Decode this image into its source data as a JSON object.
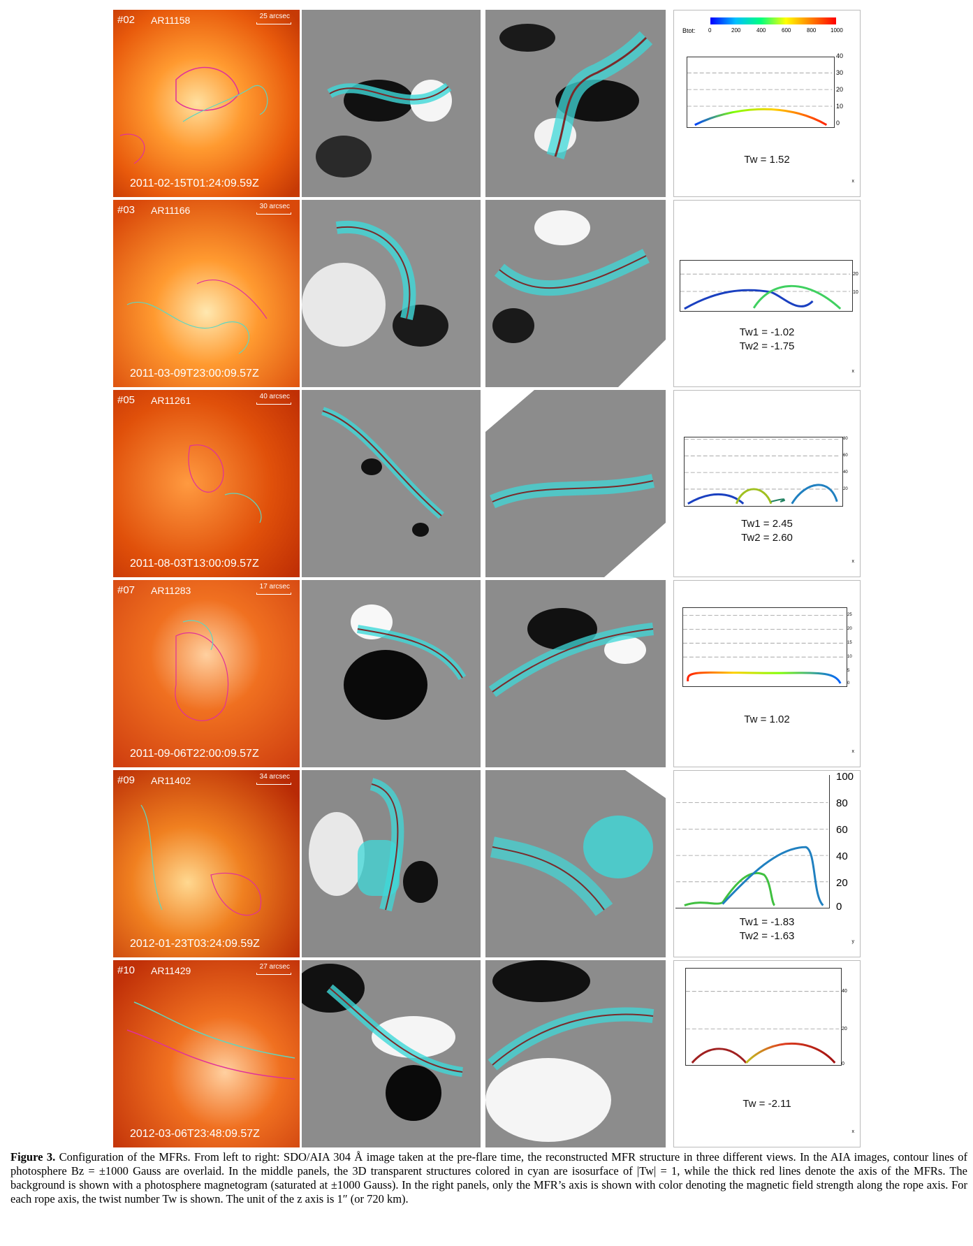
{
  "colorbar": {
    "label": "Btot:",
    "ticks": [
      "0",
      "200",
      "400",
      "600",
      "800",
      "1000"
    ]
  },
  "rows": [
    {
      "num": "#02",
      "ar": "AR11158",
      "scale": "25 arcsec",
      "time": "2011-02-15T01:24:09.59Z",
      "tw_lines": [
        "Tw = 1.52"
      ],
      "yticks": [
        "40",
        "30",
        "20",
        "10",
        "0"
      ],
      "axis_label": "x"
    },
    {
      "num": "#03",
      "ar": "AR11166",
      "scale": "30 arcsec",
      "time": "2011-03-09T23:00:09.57Z",
      "tw_lines": [
        "Tw1 = -1.02",
        "Tw2 = -1.75"
      ],
      "yticks": [
        "20",
        "10"
      ],
      "axis_label": "x"
    },
    {
      "num": "#05",
      "ar": "AR11261",
      "scale": "40 arcsec",
      "time": "2011-08-03T13:00:09.57Z",
      "tw_lines": [
        "Tw1 = 2.45",
        "Tw2 = 2.60"
      ],
      "yticks": [
        "80",
        "60",
        "40",
        "20"
      ],
      "axis_label": "x"
    },
    {
      "num": "#07",
      "ar": "AR11283",
      "scale": "17 arcsec",
      "time": "2011-09-06T22:00:09.57Z",
      "tw_lines": [
        "Tw = 1.02"
      ],
      "yticks": [
        "25",
        "20",
        "15",
        "10",
        "5",
        "0"
      ],
      "axis_label": "x"
    },
    {
      "num": "#09",
      "ar": "AR11402",
      "scale": "34 arcsec",
      "time": "2012-01-23T03:24:09.59Z",
      "tw_lines": [
        "Tw1 = -1.83",
        "Tw2 = -1.63"
      ],
      "yticks": [
        "100",
        "80",
        "60",
        "40",
        "20",
        "0"
      ],
      "axis_label": "y"
    },
    {
      "num": "#10",
      "ar": "AR11429",
      "scale": "27 arcsec",
      "time": "2012-03-06T23:48:09.57Z",
      "tw_lines": [
        "Tw = -2.11"
      ],
      "yticks": [
        "40",
        "20",
        "0"
      ],
      "axis_label": "x"
    }
  ],
  "caption": {
    "title": "Figure 3.",
    "text": " Configuration of the MFRs. From left to right: SDO/AIA 304 Å image taken at the pre-flare time, the reconstructed MFR structure in three different views. In the AIA images, contour lines of photosphere Bz = ±1000 Gauss are overlaid. In the middle panels, the 3D transparent structures colored in cyan are isosurface of |Tw| = 1, while the thick red lines denote the axis of the MFRs. The background is shown with a photosphere magnetogram (saturated at ±1000 Gauss). In the right panels, only the MFR’s axis is shown with color denoting the magnetic field strength along the rope axis. For each rope axis, the twist number Tw is shown. The unit of the z axis is 1″ (or 720 km)."
  }
}
